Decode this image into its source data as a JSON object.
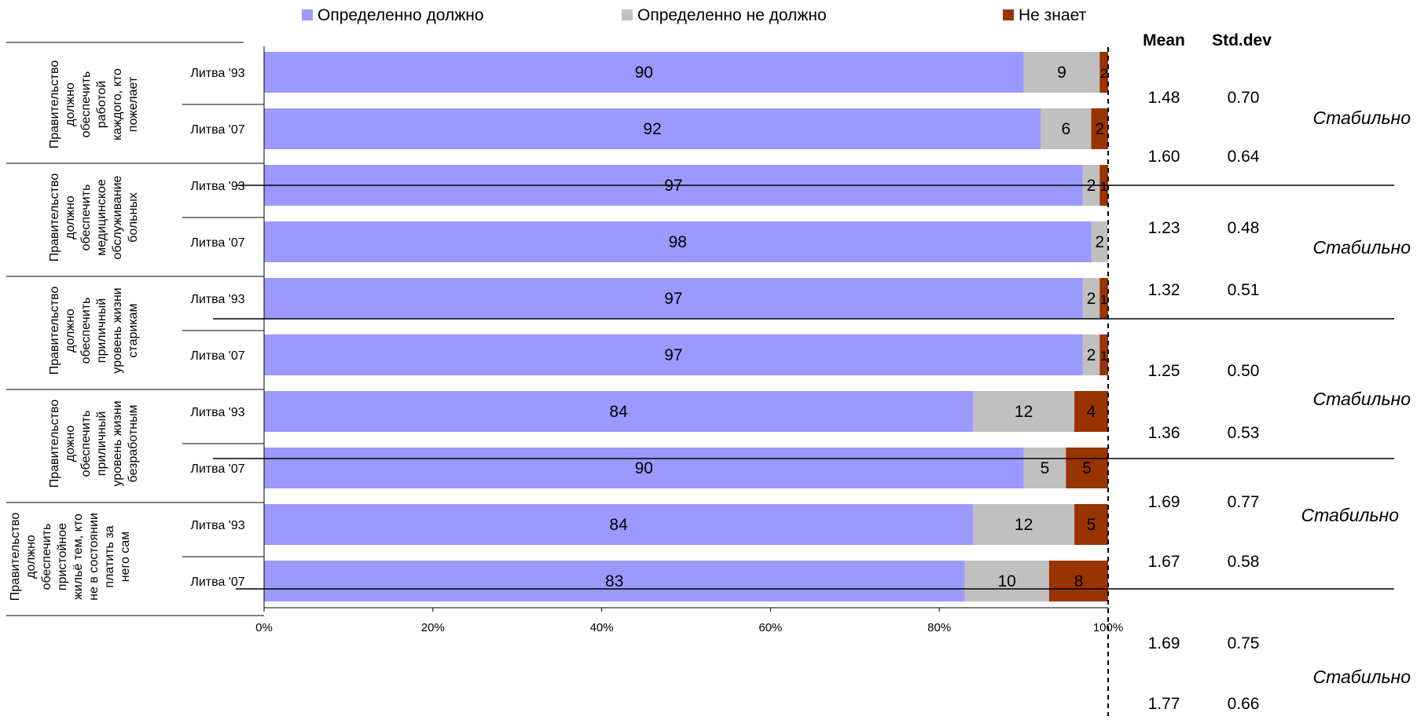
{
  "chart_data": {
    "type": "bar",
    "orientation": "horizontal",
    "stacked": true,
    "percent_stacked": true,
    "legend": {
      "position": "top",
      "entries": [
        "Определенно должно",
        "Определенно не должно",
        "Не знает"
      ]
    },
    "colors": {
      "series": [
        "#9999FF",
        "#C0C0C0",
        "#993300"
      ],
      "ref_line": "#000000",
      "text": "#000000"
    },
    "x_axis": {
      "range": [
        0,
        100
      ],
      "tick_labels": [
        "0%",
        "20%",
        "40%",
        "60%",
        "80%",
        "100%"
      ]
    },
    "grid": false,
    "groups": [
      {
        "label": "Правительство должно обеспечить работой каждого, кто пожелает",
        "lines": [
          "Правительство",
          "должно",
          "обеспечить",
          "работой",
          "каждого, кто",
          "пожелает"
        ]
      },
      {
        "label": "Правительство должно обеспечить медицинское обслуживание больных",
        "lines": [
          "Правительство",
          "должно",
          "обеспечить",
          "медицинское",
          "обслуживание",
          "больных"
        ]
      },
      {
        "label": "Правительство должно обеспечить приличный уровень жизни старикам",
        "lines": [
          "Правительство",
          "должно",
          "обеспечить",
          "приличный",
          "уровень жизни",
          "старикам"
        ]
      },
      {
        "label": "Правительство дожно обеспечить приличный уровень жизни безработным",
        "lines": [
          "Правительство",
          "дожно",
          "обеспечить",
          "приличный",
          "уровень жизни",
          "безработным"
        ]
      },
      {
        "label": "Правительство должно обеспечить пристойное жильё тем, кто не в состоянии платить за него сам",
        "lines": [
          "Правительство",
          "должно",
          "обеспечить",
          "пристойное",
          "жильё тем, кто",
          "не в состоянии",
          "платить за",
          "него сам"
        ]
      }
    ],
    "rows": [
      {
        "group": 0,
        "label": "Литва '93",
        "values": [
          90,
          9,
          2
        ],
        "labels": [
          "90",
          "9",
          "2"
        ]
      },
      {
        "group": 0,
        "label": "Литва '07",
        "values": [
          92,
          6,
          2
        ],
        "labels": [
          "92",
          "6",
          "2"
        ]
      },
      {
        "group": 1,
        "label": "Литва '93",
        "values": [
          97,
          2,
          1
        ],
        "labels": [
          "97",
          "2",
          "1"
        ]
      },
      {
        "group": 1,
        "label": "Литва '07",
        "values": [
          98,
          2,
          1
        ],
        "labels": [
          "98",
          "2",
          "1"
        ]
      },
      {
        "group": 2,
        "label": "Литва '93",
        "values": [
          97,
          2,
          1
        ],
        "labels": [
          "97",
          "2",
          "1"
        ]
      },
      {
        "group": 2,
        "label": "Литва '07",
        "values": [
          97,
          2,
          1
        ],
        "labels": [
          "97",
          "2",
          "1"
        ]
      },
      {
        "group": 3,
        "label": "Литва '93",
        "values": [
          84,
          12,
          4
        ],
        "labels": [
          "84",
          "12",
          "4"
        ]
      },
      {
        "group": 3,
        "label": "Литва '07",
        "values": [
          90,
          5,
          5
        ],
        "labels": [
          "90",
          "5",
          "5"
        ]
      },
      {
        "group": 4,
        "label": "Литва '93",
        "values": [
          84,
          12,
          5
        ],
        "labels": [
          "84",
          "12",
          "5"
        ]
      },
      {
        "group": 4,
        "label": "Литва '07",
        "values": [
          83,
          10,
          8
        ],
        "labels": [
          "83",
          "10",
          "8"
        ]
      }
    ],
    "stats": {
      "mean_header": "Mean",
      "std_header": "Std.dev",
      "values": [
        {
          "mean": "1.48",
          "std": "0.70"
        },
        {
          "mean": "1.60",
          "std": "0.64"
        },
        {
          "mean": "1.23",
          "std": "0.48"
        },
        {
          "mean": "1.32",
          "std": "0.51"
        },
        {
          "mean": "1.25",
          "std": "0.50"
        },
        {
          "mean": "1.36",
          "std": "0.53"
        },
        {
          "mean": "1.69",
          "std": "0.77"
        },
        {
          "mean": "1.67",
          "std": "0.58"
        },
        {
          "mean": "1.69",
          "std": "0.75"
        },
        {
          "mean": "1.77",
          "std": "0.66"
        }
      ]
    },
    "trend_labels": [
      "Стабильно",
      "Стабильно",
      "Стабильно",
      "Стабильно",
      "Стабильно"
    ]
  }
}
